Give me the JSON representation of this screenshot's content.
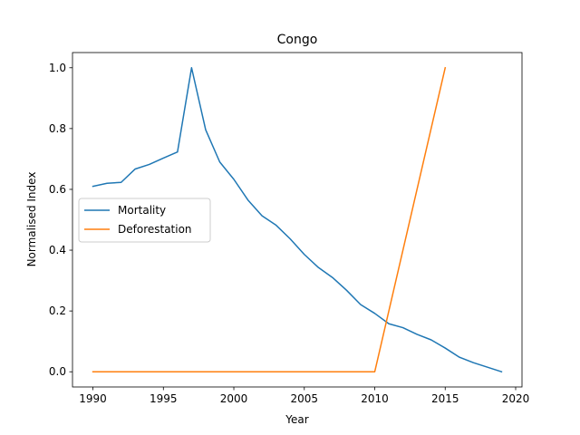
{
  "chart_data": {
    "type": "line",
    "title": "Congo",
    "xlabel": "Year",
    "ylabel": "Normalised Index",
    "xlim": [
      1988.55,
      2020.45
    ],
    "ylim": [
      -0.05,
      1.05
    ],
    "xticks": [
      1990,
      1995,
      2000,
      2005,
      2010,
      2015,
      2020
    ],
    "yticks": [
      0.0,
      0.2,
      0.4,
      0.6,
      0.8,
      1.0
    ],
    "grid": false,
    "legend_position": "center-left",
    "series": [
      {
        "name": "Mortality",
        "color": "#1f77b4",
        "x": [
          1990,
          1991,
          1992,
          1993,
          1994,
          1995,
          1996,
          1997,
          1998,
          1999,
          2000,
          2001,
          2002,
          2003,
          2004,
          2005,
          2006,
          2007,
          2008,
          2009,
          2010,
          2011,
          2012,
          2013,
          2014,
          2015,
          2016,
          2017,
          2018,
          2019
        ],
        "y": [
          0.61,
          0.62,
          0.623,
          0.667,
          0.682,
          0.703,
          0.723,
          1.0,
          0.796,
          0.69,
          0.633,
          0.565,
          0.513,
          0.482,
          0.437,
          0.386,
          0.343,
          0.31,
          0.268,
          0.221,
          0.192,
          0.158,
          0.145,
          0.123,
          0.105,
          0.078,
          0.048,
          0.03,
          0.015,
          0.0
        ]
      },
      {
        "name": "Deforestation",
        "color": "#ff7f0e",
        "x": [
          1990,
          1991,
          1992,
          1993,
          1994,
          1995,
          1996,
          1997,
          1998,
          1999,
          2000,
          2001,
          2002,
          2003,
          2004,
          2005,
          2006,
          2007,
          2008,
          2009,
          2010,
          2015
        ],
        "y": [
          0,
          0,
          0,
          0,
          0,
          0,
          0,
          0,
          0,
          0,
          0,
          0,
          0,
          0,
          0,
          0,
          0,
          0,
          0,
          0,
          0,
          1.0
        ]
      }
    ]
  }
}
